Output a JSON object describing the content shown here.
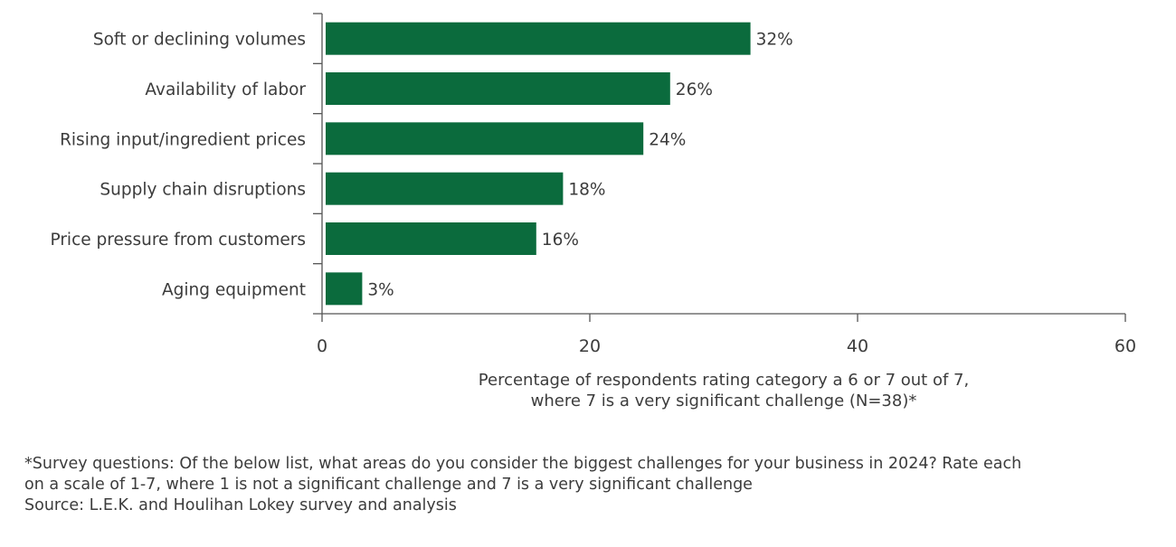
{
  "chart_data": {
    "type": "bar",
    "orientation": "horizontal",
    "categories": [
      "Soft or declining volumes",
      "Availability of labor",
      "Rising input/ingredient prices",
      "Supply chain disruptions",
      "Price pressure from customers",
      "Aging equipment"
    ],
    "values": [
      32,
      26,
      24,
      18,
      16,
      3
    ],
    "data_labels": [
      "32%",
      "26%",
      "24%",
      "18%",
      "16%",
      "3%"
    ],
    "xlabel_lines": [
      "Percentage of respondents rating category a 6 or 7 out of 7,",
      "where 7 is a very significant challenge (N=38)*"
    ],
    "xlim": [
      0,
      60
    ],
    "xticks": [
      0,
      20,
      40,
      60
    ],
    "xtick_labels": [
      "0",
      "20",
      "40",
      "60"
    ],
    "grid": false,
    "bar_color": "#0b6b3d"
  },
  "footnote": {
    "line1": "*Survey questions: Of the below list, what areas do you consider the biggest challenges for your business in 2024? Rate each",
    "line2": "on a scale of 1-7, where 1 is not a significant challenge and 7 is a very significant challenge",
    "source": "Source: L.E.K. and Houlihan Lokey survey and analysis"
  }
}
